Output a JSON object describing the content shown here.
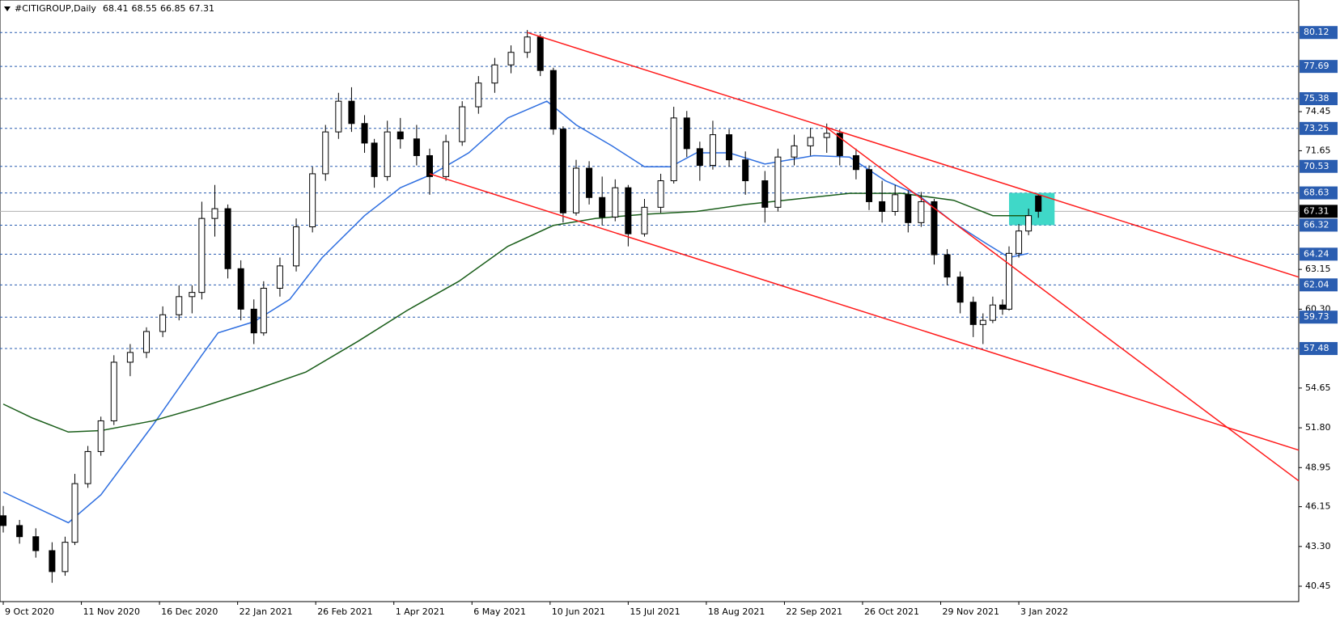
{
  "chart_data": {
    "type": "candlestick",
    "title": "#CITIGROUP,Daily",
    "header_values": [
      68.41,
      68.55,
      66.85,
      67.31
    ],
    "x": [
      0,
      5,
      10,
      15,
      19,
      22,
      26,
      30,
      34,
      39,
      44,
      49,
      54,
      58,
      61,
      65,
      69,
      73,
      77,
      80,
      85,
      90,
      95,
      99,
      103,
      107,
      111,
      114,
      118,
      122,
      127,
      131,
      136,
      141,
      146,
      151,
      156,
      161,
      165,
      169,
      172,
      176,
      180,
      184,
      188,
      192,
      197,
      202,
      206,
      210,
      214,
      218,
      223,
      228,
      234,
      238,
      243,
      248,
      253,
      257,
      262,
      266,
      270,
      274,
      278,
      282,
      286,
      290,
      294,
      298,
      301,
      304,
      307,
      309,
      312,
      315,
      318
    ],
    "open": [
      45.5,
      44.8,
      44.0,
      43.0,
      41.5,
      43.6,
      47.8,
      50.1,
      52.3,
      56.5,
      57.2,
      58.7,
      59.9,
      61.2,
      61.5,
      66.8,
      67.5,
      63.2,
      60.3,
      58.6,
      61.8,
      63.4,
      66.2,
      70.0,
      73.0,
      75.2,
      73.6,
      72.2,
      69.8,
      73.0,
      72.5,
      71.3,
      69.8,
      72.3,
      74.8,
      76.5,
      77.8,
      78.7,
      79.8,
      77.4,
      73.2,
      67.2,
      70.4,
      68.3,
      66.9,
      69.0,
      65.7,
      67.6,
      69.5,
      74.0,
      71.8,
      70.6,
      72.8,
      71.0,
      69.5,
      67.6,
      71.2,
      72.0,
      72.6,
      72.9,
      71.3,
      70.3,
      68.0,
      67.3,
      68.5,
      66.5,
      68.0,
      64.2,
      62.6,
      60.8,
      59.2,
      59.5,
      60.6,
      60.3,
      64.3,
      65.9,
      68.41
    ],
    "high": [
      46.2,
      45.2,
      44.6,
      43.6,
      44.0,
      48.5,
      50.5,
      52.6,
      57.0,
      57.8,
      59.0,
      60.5,
      62.0,
      62.0,
      68.0,
      69.2,
      67.8,
      63.8,
      61.0,
      62.3,
      64.0,
      66.8,
      70.5,
      73.5,
      75.8,
      76.2,
      74.2,
      72.5,
      73.8,
      74.0,
      73.5,
      71.8,
      72.8,
      75.2,
      77.0,
      78.3,
      79.2,
      80.3,
      80.0,
      77.6,
      73.4,
      71.0,
      70.9,
      69.8,
      69.6,
      69.2,
      68.2,
      70.0,
      74.8,
      74.5,
      72.3,
      73.8,
      73.2,
      71.6,
      70.2,
      71.8,
      72.8,
      73.3,
      73.6,
      73.2,
      71.8,
      70.6,
      69.5,
      69.2,
      68.8,
      68.7,
      68.2,
      64.6,
      63.0,
      61.2,
      60.0,
      61.2,
      61.0,
      64.8,
      66.4,
      67.5,
      68.55
    ],
    "low": [
      44.3,
      43.5,
      42.5,
      40.7,
      41.2,
      43.4,
      47.5,
      49.8,
      52.0,
      55.5,
      56.8,
      58.3,
      59.5,
      60.0,
      61.0,
      65.5,
      62.5,
      59.5,
      57.8,
      58.4,
      61.2,
      63.0,
      65.8,
      69.5,
      72.5,
      73.0,
      71.5,
      69.0,
      69.5,
      71.8,
      70.6,
      68.5,
      69.5,
      72.0,
      74.3,
      75.8,
      77.2,
      78.3,
      77.0,
      72.8,
      66.5,
      67.0,
      67.8,
      66.3,
      66.6,
      64.8,
      65.5,
      67.2,
      69.3,
      71.2,
      69.5,
      70.3,
      70.5,
      68.5,
      66.5,
      67.3,
      70.6,
      71.3,
      71.5,
      70.6,
      69.6,
      67.4,
      66.5,
      67.0,
      65.8,
      66.2,
      63.5,
      62.0,
      60.0,
      58.3,
      57.8,
      59.3,
      59.9,
      60.2,
      64.0,
      65.6,
      66.85
    ],
    "close": [
      44.8,
      44.0,
      43.0,
      41.5,
      43.6,
      47.8,
      50.1,
      52.3,
      56.5,
      57.2,
      58.7,
      59.9,
      61.2,
      61.5,
      66.8,
      67.5,
      63.2,
      60.3,
      58.6,
      61.8,
      63.4,
      66.2,
      70.0,
      73.0,
      75.2,
      73.6,
      72.2,
      69.8,
      73.0,
      72.5,
      71.3,
      69.8,
      72.3,
      74.8,
      76.5,
      77.8,
      78.7,
      79.8,
      77.4,
      73.2,
      67.2,
      70.4,
      68.3,
      66.9,
      69.0,
      65.7,
      67.6,
      69.5,
      74.0,
      71.8,
      70.6,
      72.8,
      71.0,
      69.5,
      67.6,
      71.2,
      72.0,
      72.6,
      72.9,
      71.3,
      70.3,
      68.0,
      67.3,
      68.5,
      66.5,
      68.0,
      64.2,
      62.6,
      60.8,
      59.2,
      59.5,
      60.6,
      60.3,
      64.3,
      65.9,
      67.0,
      67.31
    ],
    "moving_averages": [
      {
        "color": "#2f6fe0",
        "x": [
          0,
          20,
          30,
          46,
          61,
          66,
          77,
          88,
          98,
          111,
          122,
          132,
          143,
          155,
          167,
          176,
          187,
          197,
          205,
          213,
          223,
          234,
          249,
          260,
          271,
          281,
          292,
          302,
          309,
          315
        ],
        "values": [
          47.2,
          45.0,
          47.0,
          52.0,
          57.0,
          58.6,
          59.4,
          61.0,
          64.0,
          67.0,
          69.0,
          70.0,
          71.5,
          74.0,
          75.2,
          73.5,
          72.0,
          70.5,
          70.5,
          71.5,
          71.5,
          70.7,
          71.3,
          71.2,
          69.5,
          68.5,
          66.5,
          65.0,
          64.0,
          64.3
        ]
      },
      {
        "color": "#1a5e1a",
        "x": [
          0,
          9,
          20,
          30,
          46,
          61,
          77,
          93,
          109,
          124,
          140,
          155,
          169,
          182,
          197,
          213,
          228,
          244,
          260,
          276,
          292,
          304,
          315
        ],
        "values": [
          53.5,
          52.5,
          51.5,
          51.6,
          52.3,
          53.3,
          54.5,
          55.8,
          58.0,
          60.2,
          62.3,
          64.8,
          66.3,
          66.8,
          67.1,
          67.3,
          67.8,
          68.2,
          68.6,
          68.6,
          68.1,
          67.0,
          67.0
        ]
      }
    ],
    "trendline_color": "#ff1a1a",
    "trendlines": [
      {
        "x": [
          161,
          398
        ],
        "values": [
          80.12,
          62.6
        ]
      },
      {
        "x": [
          131,
          398
        ],
        "values": [
          70.0,
          50.2
        ]
      },
      {
        "x": [
          253,
          398
        ],
        "values": [
          73.3,
          48.0
        ]
      }
    ],
    "highlight": {
      "x": [
        309,
        323
      ],
      "values": [
        68.63,
        66.32
      ],
      "color": "#3fd8c8"
    },
    "xlim": [
      -1,
      398
    ],
    "xticks": [
      {
        "value": 0,
        "label": "9 Oct 2020"
      },
      {
        "value": 24,
        "label": "11 Nov 2020"
      },
      {
        "value": 48,
        "label": "16 Dec 2020"
      },
      {
        "value": 72,
        "label": "22 Jan 2021"
      },
      {
        "value": 96,
        "label": "26 Feb 2021"
      },
      {
        "value": 120,
        "label": "1 Apr 2021"
      },
      {
        "value": 144,
        "label": "6 May 2021"
      },
      {
        "value": 168,
        "label": "10 Jun 2021"
      },
      {
        "value": 192,
        "label": "15 Jul 2021"
      },
      {
        "value": 216,
        "label": "18 Aug 2021"
      },
      {
        "value": 240,
        "label": "22 Sep 2021"
      },
      {
        "value": 264,
        "label": "26 Oct 2021"
      },
      {
        "value": 288,
        "label": "29 Nov 2021"
      },
      {
        "value": 312,
        "label": "3 Jan 2022"
      }
    ],
    "ylim": [
      39.35,
      82.45
    ],
    "yticks": [
      74.45,
      71.65,
      63.15,
      {
        "value": 60.3,
        "label": "60.30"
      },
      54.65,
      {
        "value": 51.8,
        "label": "51.80"
      },
      48.95,
      46.15,
      {
        "value": 43.3,
        "label": "43.30"
      },
      40.45
    ],
    "levels": [
      80.12,
      77.69,
      75.38,
      73.25,
      70.53,
      68.63,
      66.32,
      64.24,
      62.04,
      59.73,
      57.48
    ],
    "level_color": "#2a5db0",
    "last_price": 67.31
  }
}
